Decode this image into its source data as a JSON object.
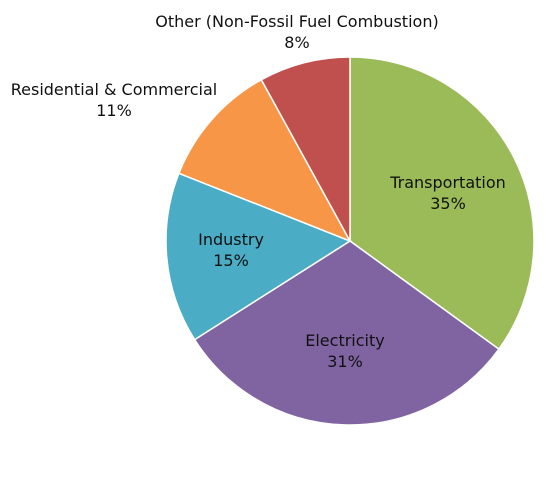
{
  "chart_data": {
    "type": "pie",
    "title": "",
    "legend": "none",
    "slices": [
      {
        "label": "Transportation",
        "value": 35,
        "display": "35%",
        "color": "#9bbb59"
      },
      {
        "label": "Electricity",
        "value": 31,
        "display": "31%",
        "color": "#8064a2"
      },
      {
        "label": "Industry",
        "value": 15,
        "display": "15%",
        "color": "#4bacc6"
      },
      {
        "label": "Residential & Commercial",
        "value": 11,
        "display": "11%",
        "color": "#f79646"
      },
      {
        "label": "Other (Non-Fossil Fuel Combustion)",
        "value": 8,
        "display": "8%",
        "color": "#c0504d"
      }
    ]
  }
}
